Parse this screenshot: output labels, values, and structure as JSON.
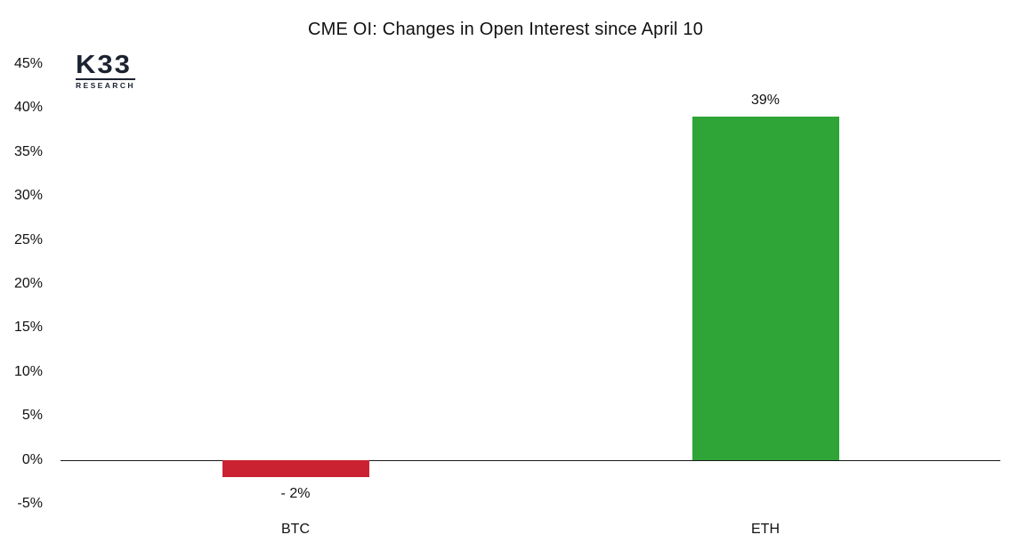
{
  "header": {
    "title": "CME OI: Changes in Open Interest since April 10"
  },
  "logo": {
    "brand": "K33",
    "sub": "RESEARCH",
    "color": "#1d2231"
  },
  "chart_data": {
    "type": "bar",
    "title": "CME OI: Changes in Open Interest since April 10",
    "categories": [
      "BTC",
      "ETH"
    ],
    "values": [
      -2,
      39
    ],
    "bar_labels": [
      "- 2%",
      "39%"
    ],
    "bar_colors": [
      "#cb2231",
      "#2fa437"
    ],
    "xlabel": "",
    "ylabel": "",
    "ylim": [
      -5,
      45
    ],
    "ytick_step": 5,
    "ytick_suffix": "%",
    "grid": false,
    "legend": "none",
    "baseline": 0
  }
}
